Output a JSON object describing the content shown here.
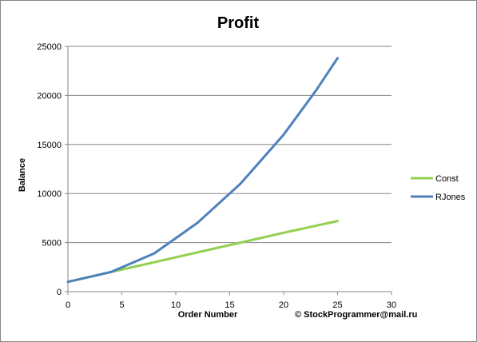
{
  "chart_data": {
    "type": "line",
    "title": "Profit",
    "xlabel": "Order Number",
    "ylabel": "Balance",
    "xlim": [
      0,
      30
    ],
    "ylim": [
      0,
      25000
    ],
    "xticks": [
      0,
      5,
      10,
      15,
      20,
      25,
      30
    ],
    "yticks": [
      0,
      5000,
      10000,
      15000,
      20000,
      25000
    ],
    "grid": "horizontal",
    "legend_position": "right",
    "series": [
      {
        "name": "Const",
        "color": "#92d050",
        "points": [
          [
            0,
            1000
          ],
          [
            4,
            2000
          ],
          [
            8,
            3000
          ],
          [
            12,
            4000
          ],
          [
            16,
            5000
          ],
          [
            20,
            6000
          ],
          [
            25,
            7200
          ]
        ]
      },
      {
        "name": "RJones",
        "color": "#4f81bd",
        "points": [
          [
            0,
            1000
          ],
          [
            4,
            2000
          ],
          [
            8,
            3900
          ],
          [
            12,
            7000
          ],
          [
            16,
            11000
          ],
          [
            20,
            16000
          ],
          [
            23,
            20500
          ],
          [
            25,
            23800
          ]
        ]
      }
    ],
    "annotation": "© StockProgrammer@mail.ru"
  }
}
